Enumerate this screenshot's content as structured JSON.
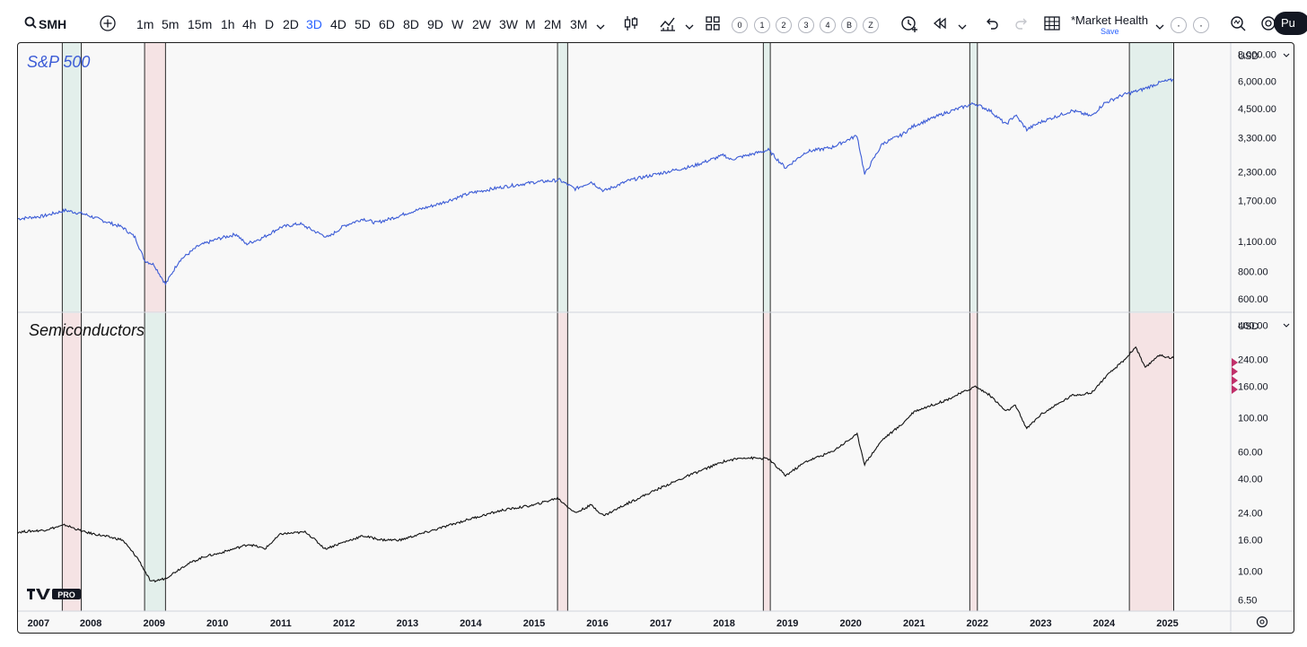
{
  "toolbar": {
    "symbol": "SMH",
    "intervals": [
      "1m",
      "5m",
      "15m",
      "1h",
      "4h",
      "D",
      "2D",
      "3D",
      "4D",
      "5D",
      "6D",
      "8D",
      "9D",
      "W",
      "2W",
      "3W",
      "M",
      "2M",
      "3M"
    ],
    "active_interval": "3D",
    "layout_slots": [
      "0",
      "1",
      "2",
      "3",
      "4",
      "B",
      "Z"
    ],
    "layout_name": "*Market Health",
    "layout_save_label": "Save",
    "publish_label": "Pu"
  },
  "colors": {
    "spx_line": "#3b5bd6",
    "semis_line": "#111111",
    "green_band": "#e3efeb",
    "red_band": "#f5e3e4",
    "alert_marker": "#c0316a",
    "active": "#2962ff"
  },
  "panes": {
    "top": {
      "title": "S&P 500",
      "currency": "USD"
    },
    "bottom": {
      "title": "Semiconductors",
      "currency": "USD"
    }
  },
  "chart_data": {
    "type": "line",
    "x_axis": {
      "range": [
        2006.85,
        2026.0
      ],
      "ticks": [
        "2007",
        "2008",
        "2009",
        "2010",
        "2011",
        "2012",
        "2013",
        "2014",
        "2015",
        "2016",
        "2017",
        "2018",
        "2019",
        "2020",
        "2021",
        "2022",
        "2023",
        "2024",
        "2025"
      ]
    },
    "bands": [
      {
        "start": 2007.55,
        "end": 2007.85,
        "top": "green",
        "bottom": "red"
      },
      {
        "start": 2008.85,
        "end": 2009.18,
        "top": "red",
        "bottom": "green"
      },
      {
        "start": 2015.37,
        "end": 2015.53,
        "top": "green",
        "bottom": "red"
      },
      {
        "start": 2018.62,
        "end": 2018.73,
        "top": "green",
        "bottom": "red"
      },
      {
        "start": 2021.88,
        "end": 2022.0,
        "top": "green",
        "bottom": "red"
      },
      {
        "start": 2024.4,
        "end": 2025.1,
        "top": "green",
        "bottom": "red"
      }
    ],
    "series": [
      {
        "name": "S&P 500",
        "pane": "top",
        "scale": "log",
        "ylim": [
          520,
          9000
        ],
        "tick_labels": [
          "8,000.00",
          "6,000.00",
          "4,500.00",
          "3,300.00",
          "2,300.00",
          "1,700.00",
          "1,100.00",
          "800.00",
          "600.00"
        ],
        "points": [
          [
            2006.85,
            1400
          ],
          [
            2007.25,
            1440
          ],
          [
            2007.6,
            1530
          ],
          [
            2007.9,
            1470
          ],
          [
            2008.2,
            1370
          ],
          [
            2008.5,
            1280
          ],
          [
            2008.7,
            1150
          ],
          [
            2008.85,
            900
          ],
          [
            2009.0,
            860
          ],
          [
            2009.18,
            700
          ],
          [
            2009.4,
            900
          ],
          [
            2009.7,
            1050
          ],
          [
            2010.0,
            1130
          ],
          [
            2010.3,
            1190
          ],
          [
            2010.45,
            1070
          ],
          [
            2010.7,
            1140
          ],
          [
            2011.0,
            1280
          ],
          [
            2011.3,
            1330
          ],
          [
            2011.6,
            1200
          ],
          [
            2011.75,
            1150
          ],
          [
            2012.0,
            1300
          ],
          [
            2012.3,
            1400
          ],
          [
            2012.5,
            1340
          ],
          [
            2012.8,
            1420
          ],
          [
            2013.0,
            1490
          ],
          [
            2013.5,
            1640
          ],
          [
            2014.0,
            1840
          ],
          [
            2014.5,
            1960
          ],
          [
            2015.0,
            2060
          ],
          [
            2015.4,
            2110
          ],
          [
            2015.65,
            1920
          ],
          [
            2015.9,
            2070
          ],
          [
            2016.1,
            1880
          ],
          [
            2016.5,
            2100
          ],
          [
            2017.0,
            2270
          ],
          [
            2017.5,
            2440
          ],
          [
            2018.0,
            2750
          ],
          [
            2018.1,
            2620
          ],
          [
            2018.7,
            2900
          ],
          [
            2018.97,
            2400
          ],
          [
            2019.3,
            2850
          ],
          [
            2019.7,
            2980
          ],
          [
            2020.1,
            3380
          ],
          [
            2020.22,
            2240
          ],
          [
            2020.5,
            3100
          ],
          [
            2020.8,
            3400
          ],
          [
            2021.0,
            3750
          ],
          [
            2021.5,
            4300
          ],
          [
            2021.95,
            4750
          ],
          [
            2022.2,
            4400
          ],
          [
            2022.45,
            3800
          ],
          [
            2022.6,
            4200
          ],
          [
            2022.78,
            3600
          ],
          [
            2023.0,
            3900
          ],
          [
            2023.5,
            4400
          ],
          [
            2023.8,
            4150
          ],
          [
            2024.0,
            4750
          ],
          [
            2024.3,
            5200
          ],
          [
            2024.6,
            5500
          ],
          [
            2024.9,
            5950
          ],
          [
            2025.1,
            6100
          ]
        ]
      },
      {
        "name": "Semiconductors",
        "pane": "bottom",
        "scale": "log",
        "ylim": [
          5.5,
          480
        ],
        "tick_labels": [
          "400.00",
          "240.00",
          "160.00",
          "100.00",
          "60.00",
          "40.00",
          "24.00",
          "16.00",
          "10.00",
          "6.50"
        ],
        "points": [
          [
            2006.85,
            18
          ],
          [
            2007.25,
            18.5
          ],
          [
            2007.6,
            20
          ],
          [
            2007.9,
            18
          ],
          [
            2008.2,
            17
          ],
          [
            2008.5,
            16
          ],
          [
            2008.75,
            12
          ],
          [
            2008.95,
            8.5
          ],
          [
            2009.18,
            9
          ],
          [
            2009.5,
            11
          ],
          [
            2009.8,
            12.5
          ],
          [
            2010.0,
            13
          ],
          [
            2010.5,
            15
          ],
          [
            2010.75,
            14
          ],
          [
            2011.0,
            17.5
          ],
          [
            2011.4,
            18
          ],
          [
            2011.7,
            14
          ],
          [
            2012.0,
            15.5
          ],
          [
            2012.3,
            17
          ],
          [
            2012.6,
            16
          ],
          [
            2012.9,
            16
          ],
          [
            2013.0,
            16.5
          ],
          [
            2013.5,
            19
          ],
          [
            2014.0,
            22
          ],
          [
            2014.5,
            25
          ],
          [
            2015.0,
            27
          ],
          [
            2015.37,
            30
          ],
          [
            2015.65,
            24
          ],
          [
            2015.9,
            27
          ],
          [
            2016.1,
            23
          ],
          [
            2016.5,
            28
          ],
          [
            2017.0,
            35
          ],
          [
            2017.5,
            43
          ],
          [
            2018.0,
            52
          ],
          [
            2018.3,
            55
          ],
          [
            2018.7,
            54
          ],
          [
            2018.97,
            42
          ],
          [
            2019.3,
            52
          ],
          [
            2019.7,
            60
          ],
          [
            2020.1,
            78
          ],
          [
            2020.22,
            50
          ],
          [
            2020.5,
            72
          ],
          [
            2020.8,
            90
          ],
          [
            2021.0,
            110
          ],
          [
            2021.5,
            130
          ],
          [
            2021.97,
            160
          ],
          [
            2022.2,
            140
          ],
          [
            2022.45,
            110
          ],
          [
            2022.6,
            120
          ],
          [
            2022.78,
            85
          ],
          [
            2023.0,
            105
          ],
          [
            2023.5,
            140
          ],
          [
            2023.8,
            145
          ],
          [
            2024.0,
            180
          ],
          [
            2024.35,
            245
          ],
          [
            2024.5,
            290
          ],
          [
            2024.65,
            210
          ],
          [
            2024.85,
            255
          ],
          [
            2025.1,
            245
          ]
        ]
      }
    ]
  }
}
